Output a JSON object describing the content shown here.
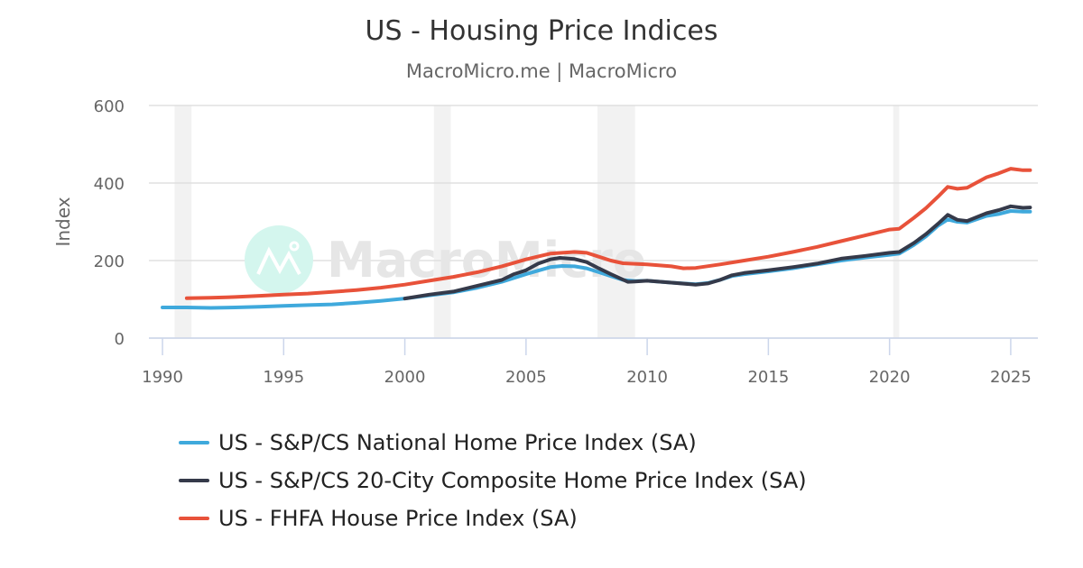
{
  "chart_data": {
    "type": "line",
    "title": "US - Housing Price Indices",
    "subtitle": "MacroMicro.me | MacroMicro",
    "watermark": "MacroMicro",
    "ylabel": "Index",
    "xlabel": "",
    "xlim": [
      1989.44,
      2026.12
    ],
    "ylim": [
      0,
      600
    ],
    "xticks": [
      1990,
      1995,
      2000,
      2005,
      2010,
      2015,
      2020,
      2025
    ],
    "yticks": [
      0,
      200,
      400,
      600
    ],
    "grid": true,
    "legend_position": "bottom",
    "recessions": [
      [
        1990.5,
        1991.2
      ],
      [
        2001.2,
        2001.9
      ],
      [
        2007.95,
        2009.5
      ],
      [
        2020.15,
        2020.4
      ]
    ],
    "series": [
      {
        "name": "US - S&P/CS National Home Price Index (SA)",
        "color": "#3fa9dc",
        "points": [
          [
            1990,
            79
          ],
          [
            1991,
            79
          ],
          [
            1992,
            78
          ],
          [
            1993,
            79
          ],
          [
            1994,
            81
          ],
          [
            1995,
            83
          ],
          [
            1996,
            85
          ],
          [
            1997,
            87
          ],
          [
            1998,
            91
          ],
          [
            1999,
            96
          ],
          [
            2000,
            102
          ],
          [
            2001,
            110
          ],
          [
            2002,
            118
          ],
          [
            2003,
            130
          ],
          [
            2004,
            145
          ],
          [
            2005,
            165
          ],
          [
            2006,
            183
          ],
          [
            2006.5,
            186
          ],
          [
            2007,
            185
          ],
          [
            2007.5,
            180
          ],
          [
            2008,
            170
          ],
          [
            2008.5,
            160
          ],
          [
            2009,
            150
          ],
          [
            2009.5,
            147
          ],
          [
            2010,
            148
          ],
          [
            2011,
            143
          ],
          [
            2012,
            139
          ],
          [
            2012.5,
            142
          ],
          [
            2013,
            150
          ],
          [
            2013.5,
            160
          ],
          [
            2014,
            165
          ],
          [
            2015,
            172
          ],
          [
            2016,
            180
          ],
          [
            2017,
            190
          ],
          [
            2018,
            200
          ],
          [
            2019,
            208
          ],
          [
            2020,
            215
          ],
          [
            2020.4,
            218
          ],
          [
            2021,
            240
          ],
          [
            2021.5,
            262
          ],
          [
            2022,
            290
          ],
          [
            2022.4,
            306
          ],
          [
            2022.8,
            300
          ],
          [
            2023.2,
            298
          ],
          [
            2024,
            315
          ],
          [
            2024.5,
            320
          ],
          [
            2025,
            328
          ],
          [
            2025.5,
            326
          ],
          [
            2025.8,
            326
          ]
        ]
      },
      {
        "name": "US - S&P/CS 20-City Composite Home Price Index (SA)",
        "color": "#353a4a",
        "points": [
          [
            2000,
            102
          ],
          [
            2001,
            112
          ],
          [
            2002,
            120
          ],
          [
            2003,
            135
          ],
          [
            2004,
            150
          ],
          [
            2004.5,
            165
          ],
          [
            2005,
            175
          ],
          [
            2005.5,
            192
          ],
          [
            2006,
            203
          ],
          [
            2006.4,
            207
          ],
          [
            2007,
            204
          ],
          [
            2007.5,
            196
          ],
          [
            2008,
            180
          ],
          [
            2008.5,
            165
          ],
          [
            2009.2,
            145
          ],
          [
            2009.5,
            146
          ],
          [
            2010,
            148
          ],
          [
            2011,
            143
          ],
          [
            2012,
            138
          ],
          [
            2012.5,
            141
          ],
          [
            2013,
            150
          ],
          [
            2013.5,
            162
          ],
          [
            2014,
            168
          ],
          [
            2015,
            175
          ],
          [
            2016,
            183
          ],
          [
            2017,
            192
          ],
          [
            2018,
            205
          ],
          [
            2019,
            212
          ],
          [
            2020,
            220
          ],
          [
            2020.4,
            222
          ],
          [
            2021,
            245
          ],
          [
            2021.5,
            268
          ],
          [
            2022,
            295
          ],
          [
            2022.4,
            318
          ],
          [
            2022.8,
            305
          ],
          [
            2023.2,
            302
          ],
          [
            2024,
            322
          ],
          [
            2024.5,
            330
          ],
          [
            2025,
            340
          ],
          [
            2025.5,
            336
          ],
          [
            2025.8,
            337
          ]
        ]
      },
      {
        "name": "US - FHFA House Price Index (SA)",
        "color": "#e8523a",
        "points": [
          [
            1991,
            103
          ],
          [
            1992,
            104
          ],
          [
            1993,
            106
          ],
          [
            1994,
            109
          ],
          [
            1995,
            112
          ],
          [
            1996,
            115
          ],
          [
            1997,
            119
          ],
          [
            1998,
            124
          ],
          [
            1999,
            130
          ],
          [
            2000,
            138
          ],
          [
            2001,
            148
          ],
          [
            2002,
            158
          ],
          [
            2003,
            170
          ],
          [
            2004,
            185
          ],
          [
            2005,
            203
          ],
          [
            2006,
            218
          ],
          [
            2007,
            222
          ],
          [
            2007.5,
            220
          ],
          [
            2008,
            210
          ],
          [
            2008.5,
            200
          ],
          [
            2009,
            193
          ],
          [
            2010,
            190
          ],
          [
            2011,
            185
          ],
          [
            2011.5,
            180
          ],
          [
            2012,
            181
          ],
          [
            2013,
            190
          ],
          [
            2014,
            200
          ],
          [
            2015,
            210
          ],
          [
            2016,
            222
          ],
          [
            2017,
            235
          ],
          [
            2018,
            250
          ],
          [
            2019,
            265
          ],
          [
            2020,
            280
          ],
          [
            2020.4,
            282
          ],
          [
            2021,
            310
          ],
          [
            2021.5,
            335
          ],
          [
            2022,
            365
          ],
          [
            2022.4,
            390
          ],
          [
            2022.8,
            385
          ],
          [
            2023.2,
            388
          ],
          [
            2024,
            415
          ],
          [
            2024.5,
            425
          ],
          [
            2025,
            437
          ],
          [
            2025.5,
            433
          ],
          [
            2025.8,
            433
          ]
        ]
      }
    ]
  }
}
